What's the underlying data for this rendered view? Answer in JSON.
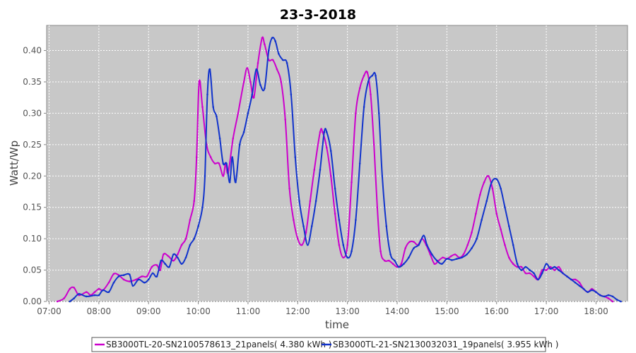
{
  "chart_data": {
    "type": "line",
    "title": "23-3-2018",
    "xlabel": "time",
    "ylabel": "Watt/Wp",
    "x_range": [
      "06:57",
      "18:38"
    ],
    "ylim": [
      0,
      0.44
    ],
    "x_ticks": [
      "07:00",
      "08:00",
      "09:00",
      "10:00",
      "11:00",
      "12:00",
      "13:00",
      "14:00",
      "15:00",
      "16:00",
      "17:00",
      "18:00"
    ],
    "y_ticks": [
      "0.00",
      "0.05",
      "0.10",
      "0.15",
      "0.20",
      "0.25",
      "0.30",
      "0.35",
      "0.40"
    ],
    "grid": true,
    "legend_position": "bottom",
    "background_color": "#c8c8c8",
    "series": [
      {
        "name": "SB3000TL-20-SN2100578613_21panels( 4.380 kWh )",
        "color": "#cc00cc",
        "points": [
          [
            "07:10",
            0.0
          ],
          [
            "07:18",
            0.005
          ],
          [
            "07:25",
            0.02
          ],
          [
            "07:30",
            0.022
          ],
          [
            "07:36",
            0.01
          ],
          [
            "07:45",
            0.015
          ],
          [
            "07:50",
            0.01
          ],
          [
            "07:55",
            0.015
          ],
          [
            "08:00",
            0.02
          ],
          [
            "08:05",
            0.018
          ],
          [
            "08:12",
            0.03
          ],
          [
            "08:18",
            0.044
          ],
          [
            "08:24",
            0.042
          ],
          [
            "08:30",
            0.035
          ],
          [
            "08:37",
            0.032
          ],
          [
            "08:45",
            0.035
          ],
          [
            "08:52",
            0.04
          ],
          [
            "08:58",
            0.04
          ],
          [
            "09:04",
            0.055
          ],
          [
            "09:10",
            0.058
          ],
          [
            "09:14",
            0.05
          ],
          [
            "09:18",
            0.075
          ],
          [
            "09:24",
            0.072
          ],
          [
            "09:30",
            0.065
          ],
          [
            "09:35",
            0.075
          ],
          [
            "09:40",
            0.09
          ],
          [
            "09:45",
            0.1
          ],
          [
            "09:50",
            0.13
          ],
          [
            "09:55",
            0.16
          ],
          [
            "09:58",
            0.23
          ],
          [
            "10:01",
            0.35
          ],
          [
            "10:05",
            0.31
          ],
          [
            "10:10",
            0.25
          ],
          [
            "10:15",
            0.23
          ],
          [
            "10:20",
            0.22
          ],
          [
            "10:25",
            0.22
          ],
          [
            "10:30",
            0.2
          ],
          [
            "10:33",
            0.22
          ],
          [
            "10:36",
            0.205
          ],
          [
            "10:42",
            0.26
          ],
          [
            "10:48",
            0.3
          ],
          [
            "10:55",
            0.35
          ],
          [
            "10:59",
            0.372
          ],
          [
            "11:03",
            0.35
          ],
          [
            "11:07",
            0.325
          ],
          [
            "11:12",
            0.38
          ],
          [
            "11:17",
            0.42
          ],
          [
            "11:20",
            0.41
          ],
          [
            "11:25",
            0.385
          ],
          [
            "11:30",
            0.385
          ],
          [
            "11:35",
            0.37
          ],
          [
            "11:40",
            0.35
          ],
          [
            "11:45",
            0.29
          ],
          [
            "11:50",
            0.18
          ],
          [
            "11:55",
            0.13
          ],
          [
            "12:00",
            0.1
          ],
          [
            "12:05",
            0.09
          ],
          [
            "12:10",
            0.11
          ],
          [
            "12:15",
            0.16
          ],
          [
            "12:20",
            0.21
          ],
          [
            "12:27",
            0.27
          ],
          [
            "12:30",
            0.27
          ],
          [
            "12:35",
            0.245
          ],
          [
            "12:40",
            0.2
          ],
          [
            "12:45",
            0.14
          ],
          [
            "12:50",
            0.09
          ],
          [
            "12:55",
            0.07
          ],
          [
            "13:00",
            0.09
          ],
          [
            "13:05",
            0.19
          ],
          [
            "13:10",
            0.3
          ],
          [
            "13:15",
            0.34
          ],
          [
            "13:20",
            0.36
          ],
          [
            "13:24",
            0.365
          ],
          [
            "13:28",
            0.33
          ],
          [
            "13:32",
            0.25
          ],
          [
            "13:36",
            0.15
          ],
          [
            "13:40",
            0.08
          ],
          [
            "13:45",
            0.065
          ],
          [
            "13:50",
            0.065
          ],
          [
            "13:55",
            0.06
          ],
          [
            "14:00",
            0.055
          ],
          [
            "14:05",
            0.06
          ],
          [
            "14:10",
            0.085
          ],
          [
            "14:15",
            0.095
          ],
          [
            "14:20",
            0.095
          ],
          [
            "14:25",
            0.09
          ],
          [
            "14:30",
            0.1
          ],
          [
            "14:35",
            0.09
          ],
          [
            "14:40",
            0.075
          ],
          [
            "14:45",
            0.06
          ],
          [
            "14:50",
            0.065
          ],
          [
            "14:55",
            0.07
          ],
          [
            "15:00",
            0.068
          ],
          [
            "15:05",
            0.072
          ],
          [
            "15:10",
            0.075
          ],
          [
            "15:15",
            0.07
          ],
          [
            "15:20",
            0.075
          ],
          [
            "15:25",
            0.09
          ],
          [
            "15:30",
            0.11
          ],
          [
            "15:35",
            0.14
          ],
          [
            "15:40",
            0.17
          ],
          [
            "15:45",
            0.19
          ],
          [
            "15:50",
            0.2
          ],
          [
            "15:55",
            0.18
          ],
          [
            "16:00",
            0.14
          ],
          [
            "16:05",
            0.115
          ],
          [
            "16:10",
            0.09
          ],
          [
            "16:15",
            0.07
          ],
          [
            "16:20",
            0.06
          ],
          [
            "16:25",
            0.055
          ],
          [
            "16:30",
            0.055
          ],
          [
            "16:35",
            0.045
          ],
          [
            "16:40",
            0.045
          ],
          [
            "16:45",
            0.04
          ],
          [
            "16:50",
            0.035
          ],
          [
            "16:55",
            0.05
          ],
          [
            "17:00",
            0.05
          ],
          [
            "17:05",
            0.055
          ],
          [
            "17:10",
            0.05
          ],
          [
            "17:15",
            0.055
          ],
          [
            "17:20",
            0.045
          ],
          [
            "17:25",
            0.04
          ],
          [
            "17:30",
            0.035
          ],
          [
            "17:35",
            0.035
          ],
          [
            "17:40",
            0.03
          ],
          [
            "17:45",
            0.02
          ],
          [
            "17:50",
            0.015
          ],
          [
            "17:55",
            0.02
          ],
          [
            "18:00",
            0.015
          ],
          [
            "18:05",
            0.01
          ],
          [
            "18:10",
            0.008
          ],
          [
            "18:15",
            0.005
          ],
          [
            "18:20",
            0.0
          ]
        ]
      },
      {
        "name": "SB3000TL-21-SN2130032031_19panels( 3.955 kWh )",
        "color": "#1133cc",
        "points": [
          [
            "07:25",
            0.0
          ],
          [
            "07:30",
            0.005
          ],
          [
            "07:36",
            0.012
          ],
          [
            "07:45",
            0.008
          ],
          [
            "07:55",
            0.01
          ],
          [
            "08:00",
            0.01
          ],
          [
            "08:05",
            0.018
          ],
          [
            "08:12",
            0.015
          ],
          [
            "08:18",
            0.03
          ],
          [
            "08:24",
            0.04
          ],
          [
            "08:30",
            0.042
          ],
          [
            "08:37",
            0.043
          ],
          [
            "08:41",
            0.025
          ],
          [
            "08:48",
            0.035
          ],
          [
            "08:55",
            0.03
          ],
          [
            "09:00",
            0.035
          ],
          [
            "09:05",
            0.045
          ],
          [
            "09:10",
            0.04
          ],
          [
            "09:15",
            0.065
          ],
          [
            "09:20",
            0.06
          ],
          [
            "09:25",
            0.055
          ],
          [
            "09:30",
            0.075
          ],
          [
            "09:35",
            0.07
          ],
          [
            "09:40",
            0.06
          ],
          [
            "09:45",
            0.07
          ],
          [
            "09:50",
            0.09
          ],
          [
            "09:55",
            0.1
          ],
          [
            "10:00",
            0.12
          ],
          [
            "10:05",
            0.15
          ],
          [
            "10:08",
            0.2
          ],
          [
            "10:11",
            0.33
          ],
          [
            "10:14",
            0.37
          ],
          [
            "10:18",
            0.31
          ],
          [
            "10:22",
            0.295
          ],
          [
            "10:26",
            0.26
          ],
          [
            "10:30",
            0.22
          ],
          [
            "10:34",
            0.22
          ],
          [
            "10:38",
            0.19
          ],
          [
            "10:41",
            0.23
          ],
          [
            "10:45",
            0.19
          ],
          [
            "10:50",
            0.25
          ],
          [
            "10:55",
            0.27
          ],
          [
            "11:00",
            0.3
          ],
          [
            "11:05",
            0.33
          ],
          [
            "11:10",
            0.37
          ],
          [
            "11:15",
            0.345
          ],
          [
            "11:20",
            0.34
          ],
          [
            "11:25",
            0.4
          ],
          [
            "11:29",
            0.42
          ],
          [
            "11:33",
            0.415
          ],
          [
            "11:37",
            0.395
          ],
          [
            "11:42",
            0.385
          ],
          [
            "11:47",
            0.38
          ],
          [
            "11:52",
            0.33
          ],
          [
            "11:57",
            0.23
          ],
          [
            "12:02",
            0.16
          ],
          [
            "12:07",
            0.12
          ],
          [
            "12:12",
            0.09
          ],
          [
            "12:17",
            0.12
          ],
          [
            "12:22",
            0.16
          ],
          [
            "12:27",
            0.21
          ],
          [
            "12:32",
            0.27
          ],
          [
            "12:35",
            0.27
          ],
          [
            "12:40",
            0.24
          ],
          [
            "12:45",
            0.18
          ],
          [
            "12:50",
            0.13
          ],
          [
            "12:55",
            0.09
          ],
          [
            "13:00",
            0.07
          ],
          [
            "13:05",
            0.08
          ],
          [
            "13:10",
            0.13
          ],
          [
            "13:15",
            0.22
          ],
          [
            "13:20",
            0.31
          ],
          [
            "13:25",
            0.35
          ],
          [
            "13:30",
            0.36
          ],
          [
            "13:34",
            0.36
          ],
          [
            "13:38",
            0.3
          ],
          [
            "13:42",
            0.2
          ],
          [
            "13:47",
            0.12
          ],
          [
            "13:52",
            0.075
          ],
          [
            "13:57",
            0.065
          ],
          [
            "14:02",
            0.055
          ],
          [
            "14:08",
            0.06
          ],
          [
            "14:14",
            0.07
          ],
          [
            "14:20",
            0.085
          ],
          [
            "14:26",
            0.09
          ],
          [
            "14:32",
            0.105
          ],
          [
            "14:36",
            0.09
          ],
          [
            "14:42",
            0.075
          ],
          [
            "14:48",
            0.065
          ],
          [
            "14:54",
            0.06
          ],
          [
            "15:00",
            0.068
          ],
          [
            "15:06",
            0.066
          ],
          [
            "15:12",
            0.068
          ],
          [
            "15:18",
            0.07
          ],
          [
            "15:24",
            0.075
          ],
          [
            "15:30",
            0.085
          ],
          [
            "15:36",
            0.1
          ],
          [
            "15:42",
            0.13
          ],
          [
            "15:48",
            0.16
          ],
          [
            "15:54",
            0.19
          ],
          [
            "16:00",
            0.195
          ],
          [
            "16:05",
            0.18
          ],
          [
            "16:10",
            0.15
          ],
          [
            "16:15",
            0.12
          ],
          [
            "16:20",
            0.09
          ],
          [
            "16:25",
            0.06
          ],
          [
            "16:30",
            0.05
          ],
          [
            "16:35",
            0.055
          ],
          [
            "16:40",
            0.05
          ],
          [
            "16:45",
            0.045
          ],
          [
            "16:50",
            0.035
          ],
          [
            "16:55",
            0.045
          ],
          [
            "17:00",
            0.06
          ],
          [
            "17:05",
            0.052
          ],
          [
            "17:10",
            0.055
          ],
          [
            "17:15",
            0.05
          ],
          [
            "17:20",
            0.045
          ],
          [
            "17:25",
            0.04
          ],
          [
            "17:30",
            0.035
          ],
          [
            "17:35",
            0.03
          ],
          [
            "17:40",
            0.025
          ],
          [
            "17:45",
            0.02
          ],
          [
            "17:50",
            0.015
          ],
          [
            "17:55",
            0.018
          ],
          [
            "18:00",
            0.015
          ],
          [
            "18:05",
            0.01
          ],
          [
            "18:10",
            0.008
          ],
          [
            "18:15",
            0.01
          ],
          [
            "18:20",
            0.008
          ],
          [
            "18:25",
            0.003
          ],
          [
            "18:30",
            0.0
          ]
        ]
      }
    ]
  }
}
